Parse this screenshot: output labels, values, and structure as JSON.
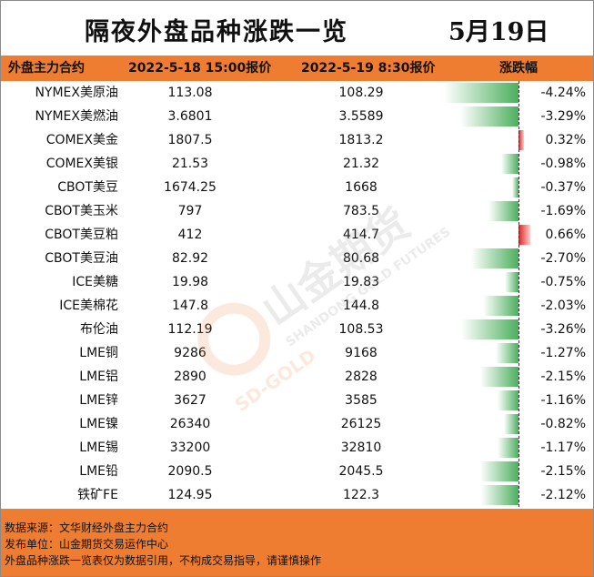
{
  "title": "隔夜外盘品种涨跌一览",
  "date": "5月19日",
  "header": {
    "name": "外盘主力合约",
    "prev": "2022-5-18 15:00报价",
    "curr": "2022-5-19 8:30报价",
    "change": "涨跌幅"
  },
  "rows": [
    {
      "name": "NYMEX美原油",
      "prev": "113.08",
      "curr": "108.29",
      "pct": "-4.24%"
    },
    {
      "name": "NYMEX美燃油",
      "prev": "3.6801",
      "curr": "3.5589",
      "pct": "-3.29%"
    },
    {
      "name": "COMEX美金",
      "prev": "1807.5",
      "curr": "1813.2",
      "pct": "0.32%"
    },
    {
      "name": "COMEX美银",
      "prev": "21.53",
      "curr": "21.32",
      "pct": "-0.98%"
    },
    {
      "name": "CBOT美豆",
      "prev": "1674.25",
      "curr": "1668",
      "pct": "-0.37%"
    },
    {
      "name": "CBOT美玉米",
      "prev": "797",
      "curr": "783.5",
      "pct": "-1.69%"
    },
    {
      "name": "CBOT美豆粕",
      "prev": "412",
      "curr": "414.7",
      "pct": "0.66%"
    },
    {
      "name": "CBOT美豆油",
      "prev": "82.92",
      "curr": "80.68",
      "pct": "-2.70%"
    },
    {
      "name": "ICE美糖",
      "prev": "19.98",
      "curr": "19.83",
      "pct": "-0.75%"
    },
    {
      "name": "ICE美棉花",
      "prev": "147.8",
      "curr": "144.8",
      "pct": "-2.03%"
    },
    {
      "name": "布伦油",
      "prev": "112.19",
      "curr": "108.53",
      "pct": "-3.26%"
    },
    {
      "name": "LME铜",
      "prev": "9286",
      "curr": "9168",
      "pct": "-1.27%"
    },
    {
      "name": "LME铝",
      "prev": "2890",
      "curr": "2828",
      "pct": "-2.15%"
    },
    {
      "name": "LME锌",
      "prev": "3627",
      "curr": "3585",
      "pct": "-1.16%"
    },
    {
      "name": "LME镍",
      "prev": "26340",
      "curr": "26125",
      "pct": "-0.82%"
    },
    {
      "name": "LME锡",
      "prev": "33200",
      "curr": "32810",
      "pct": "-1.17%"
    },
    {
      "name": "LME铅",
      "prev": "2090.5",
      "curr": "2045.5",
      "pct": "-2.15%"
    },
    {
      "name": "铁矿FE",
      "prev": "124.95",
      "curr": "122.3",
      "pct": "-2.12%"
    }
  ],
  "chart_data": {
    "type": "bar",
    "categories": [
      "NYMEX美原油",
      "NYMEX美燃油",
      "COMEX美金",
      "COMEX美银",
      "CBOT美豆",
      "CBOT美玉米",
      "CBOT美豆粕",
      "CBOT美豆油",
      "ICE美糖",
      "ICE美棉花",
      "布伦油",
      "LME铜",
      "LME铝",
      "LME锌",
      "LME镍",
      "LME锡",
      "LME铅",
      "铁矿FE"
    ],
    "values": [
      -4.24,
      -3.29,
      0.32,
      -0.98,
      -0.37,
      -1.69,
      0.66,
      -2.7,
      -0.75,
      -2.03,
      -3.26,
      -1.27,
      -2.15,
      -1.16,
      -0.82,
      -1.17,
      -2.15,
      -2.12
    ],
    "title": "隔夜外盘品种涨跌一览",
    "xlabel": "",
    "ylabel": "涨跌幅",
    "orientation": "horizontal",
    "colors": {
      "negative": "#4caf5e",
      "positive": "#e02020"
    }
  },
  "watermark": {
    "cn": "山金期货",
    "en": "SHANDONG GOLD FUTURES",
    "brand": "SD-GOLD"
  },
  "footer": {
    "source": "数据来源：文华财经外盘主力合约",
    "publisher": "发布单位：山金期货交易运作中心",
    "disclaimer": "外盘品种涨跌一览表仅为数据引用，不构成交易指导，请谨慎操作"
  },
  "colors": {
    "header_bg": "#ee7c31",
    "footer_bg": "#ee7c31"
  }
}
